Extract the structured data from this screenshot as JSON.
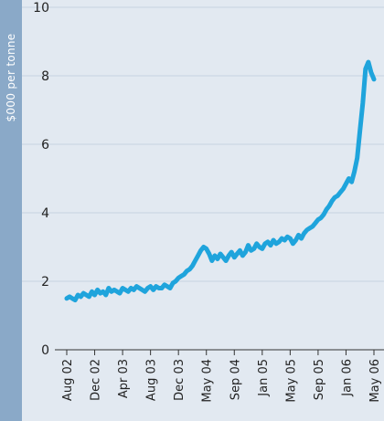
{
  "colors": {
    "band": "#8aa9c8",
    "plot_bg": "#e2e9f1",
    "grid": "#c5d3e1",
    "line": "#1fa4dc",
    "text": "#222222"
  },
  "chart_data": {
    "type": "line",
    "title": "",
    "xlabel": "",
    "ylabel": "$000 per tonne",
    "ylim": [
      0,
      10
    ],
    "yticks": [
      "0",
      "2",
      "4",
      "6",
      "8",
      "10"
    ],
    "xticks": [
      "Aug 02",
      "Dec 02",
      "Apr 03",
      "Aug 03",
      "Dec 03",
      "May 04",
      "Sep 04",
      "Jan 05",
      "May 05",
      "Sep 05",
      "Jan 06",
      "May 06"
    ],
    "grid": true,
    "legend": "none",
    "series": [
      {
        "values": [
          1.5,
          1.55,
          1.5,
          1.45,
          1.6,
          1.55,
          1.65,
          1.6,
          1.55,
          1.7,
          1.6,
          1.75,
          1.65,
          1.7,
          1.6,
          1.8,
          1.7,
          1.75,
          1.7,
          1.65,
          1.8,
          1.75,
          1.7,
          1.8,
          1.75,
          1.85,
          1.8,
          1.75,
          1.7,
          1.8,
          1.85,
          1.75,
          1.85,
          1.8,
          1.8,
          1.9,
          1.85,
          1.8,
          1.95,
          2.0,
          2.1,
          2.15,
          2.2,
          2.3,
          2.35,
          2.45,
          2.6,
          2.75,
          2.9,
          3.0,
          2.95,
          2.8,
          2.6,
          2.75,
          2.65,
          2.8,
          2.7,
          2.6,
          2.75,
          2.85,
          2.7,
          2.8,
          2.9,
          2.75,
          2.85,
          3.05,
          2.9,
          2.95,
          3.1,
          3.0,
          2.95,
          3.1,
          3.15,
          3.05,
          3.2,
          3.1,
          3.15,
          3.25,
          3.2,
          3.3,
          3.25,
          3.1,
          3.2,
          3.35,
          3.25,
          3.4,
          3.5,
          3.55,
          3.6,
          3.7,
          3.8,
          3.85,
          3.95,
          4.1,
          4.2,
          4.35,
          4.45,
          4.5,
          4.6,
          4.7,
          4.85,
          5.0,
          4.9,
          5.2,
          5.6,
          6.4,
          7.2,
          8.2,
          8.4,
          8.1,
          7.9
        ]
      }
    ]
  }
}
